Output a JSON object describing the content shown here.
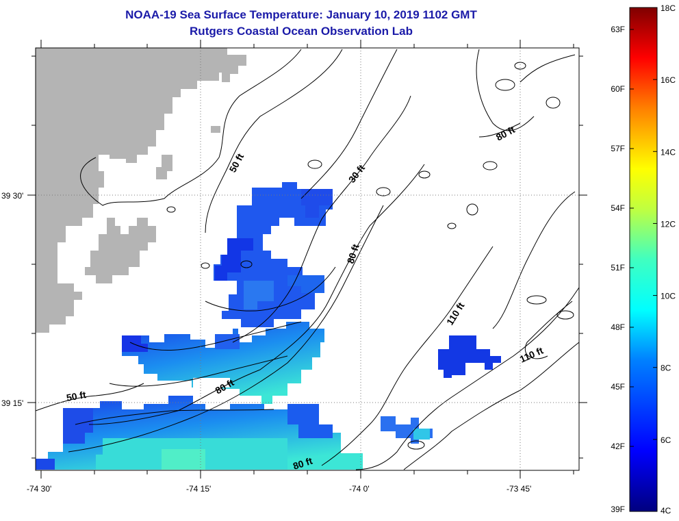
{
  "title": {
    "line1": "NOAA-19 Sea Surface Temperature:  January 10, 2019 1102 GMT",
    "line2": "Rutgers Coastal Ocean Observation Lab"
  },
  "axes": {
    "lon_labels": [
      "-74 30'",
      "-74 15'",
      "-74 0'",
      "-73 45'"
    ],
    "lat_labels": [
      "39 30'",
      "39 15'"
    ]
  },
  "contour_labels": [
    "50 ft",
    "30 ft",
    "80 ft",
    "80 ft",
    "110 ft",
    "110 ft",
    "80 ft",
    "50 ft",
    "80 ft"
  ],
  "colorbar": {
    "fahrenheit": [
      "63F",
      "60F",
      "57F",
      "54F",
      "51F",
      "48F",
      "45F",
      "42F",
      "39F"
    ],
    "celsius": [
      "18C",
      "16C",
      "14C",
      "12C",
      "10C",
      "8C",
      "6C",
      "4C"
    ]
  },
  "colors": {
    "title": "#1a1aa8",
    "land": "#b4b4b4",
    "sst_cold": "#1530e0",
    "sst_warm": "#30e8d8"
  }
}
